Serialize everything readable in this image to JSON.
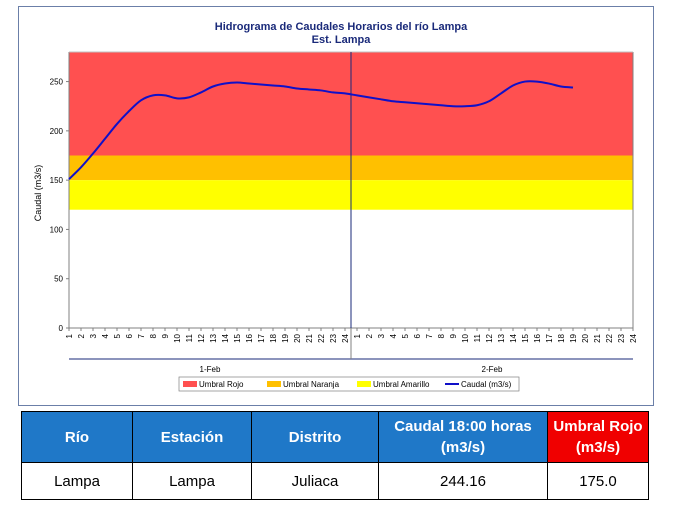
{
  "chart_data": {
    "type": "line",
    "title": "Hidrograma de Caudales Horarios del río Lampa",
    "subtitle": "Est. Lampa",
    "ylabel": "Caudal  (m3/s)",
    "ylim": [
      0,
      280
    ],
    "yticks": [
      "0",
      "50",
      "100",
      "150",
      "200",
      "250"
    ],
    "ytick_values": [
      0,
      50,
      100,
      150,
      200,
      250
    ],
    "hour_ticks": [
      "1",
      "2",
      "3",
      "4",
      "5",
      "6",
      "7",
      "8",
      "9",
      "10",
      "11",
      "12",
      "13",
      "14",
      "15",
      "16",
      "17",
      "18",
      "19",
      "20",
      "21",
      "22",
      "23",
      "24",
      "1",
      "2",
      "3",
      "4",
      "5",
      "6",
      "7",
      "8",
      "9",
      "10",
      "11",
      "12",
      "13",
      "14",
      "15",
      "16",
      "17",
      "18",
      "19",
      "20",
      "21",
      "22",
      "23",
      "24"
    ],
    "day_labels": [
      "1-Feb",
      "2-Feb"
    ],
    "grid": false,
    "legend_position": "bottom",
    "thresholds": [
      {
        "name": "Umbral Rojo",
        "from": 175,
        "to": 280,
        "color": "#ff5050"
      },
      {
        "name": "Umbral Naranja",
        "from": 150,
        "to": 175,
        "color": "#ffc000"
      },
      {
        "name": "Umbral Amarillo",
        "from": 120,
        "to": 150,
        "color": "#ffff00"
      }
    ],
    "series": [
      {
        "name": "Caudal (m3/s)",
        "color": "#1010c8",
        "x": [
          1,
          2,
          3,
          4,
          5,
          6,
          7,
          8,
          9,
          10,
          11,
          12,
          13,
          14,
          15,
          16,
          17,
          18,
          19,
          20,
          21,
          22,
          23,
          24,
          25,
          26,
          27,
          28,
          29,
          30,
          31,
          32,
          33,
          34,
          35,
          36,
          37,
          38,
          39,
          40,
          41,
          42,
          43
        ],
        "values": [
          151,
          163,
          177,
          192,
          207,
          220,
          231,
          236,
          236,
          233,
          234,
          239,
          245,
          248,
          249,
          248,
          247,
          246,
          245,
          243,
          242,
          241,
          239,
          238,
          236,
          234,
          232,
          230,
          229,
          228,
          227,
          226,
          225,
          225,
          226,
          230,
          238,
          246,
          250,
          250,
          248,
          245,
          244
        ]
      }
    ]
  },
  "legend": [
    "Umbral Rojo",
    "Umbral Naranja",
    "Umbral Amarillo",
    "Caudal (m3/s)"
  ],
  "table": {
    "headers": [
      "Río",
      "Estación",
      "Distrito",
      "Caudal 18:00 horas (m3/s)",
      "Umbral Rojo (m3/s)"
    ],
    "row": [
      "Lampa",
      "Lampa",
      "Juliaca",
      "244.16",
      "175.0"
    ]
  }
}
